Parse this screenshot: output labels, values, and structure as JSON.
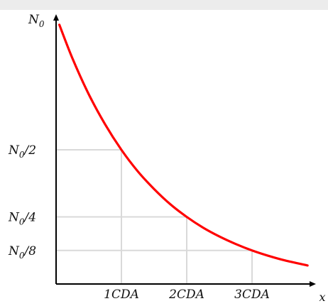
{
  "chart_data": {
    "type": "line",
    "title": "",
    "xlabel": "x",
    "ylabel": "",
    "x_ticks": [
      {
        "value": 1,
        "label": "1CDA"
      },
      {
        "value": 2,
        "label": "2CDA"
      },
      {
        "value": 3,
        "label": "3CDA"
      }
    ],
    "y_ticks": [
      {
        "value": 1,
        "base": "N",
        "sub": "0",
        "suffix": ""
      },
      {
        "value": 0.5,
        "base": "N",
        "sub": "0",
        "suffix": "/2"
      },
      {
        "value": 0.25,
        "base": "N",
        "sub": "0",
        "suffix": "/4"
      },
      {
        "value": 0.125,
        "base": "N",
        "sub": "0",
        "suffix": "/8"
      }
    ],
    "xlim": [
      0,
      3.95
    ],
    "ylim": [
      0,
      1.1
    ],
    "grid": "guide lines at tick values",
    "series": [
      {
        "color": "#ff0000",
        "x": [
          0.05,
          0.25,
          0.5,
          0.75,
          1.0,
          1.25,
          1.5,
          1.75,
          2.0,
          2.25,
          2.5,
          2.75,
          3.0,
          3.25,
          3.5,
          3.85
        ],
        "y": [
          0.966,
          0.841,
          0.707,
          0.595,
          0.5,
          0.42,
          0.354,
          0.297,
          0.25,
          0.21,
          0.177,
          0.149,
          0.125,
          0.105,
          0.088,
          0.069
        ]
      }
    ],
    "colors": {
      "curve": "#ff0000",
      "axis": "#000000",
      "guide": "#d9d9d9",
      "top_band": "#ececec"
    }
  }
}
